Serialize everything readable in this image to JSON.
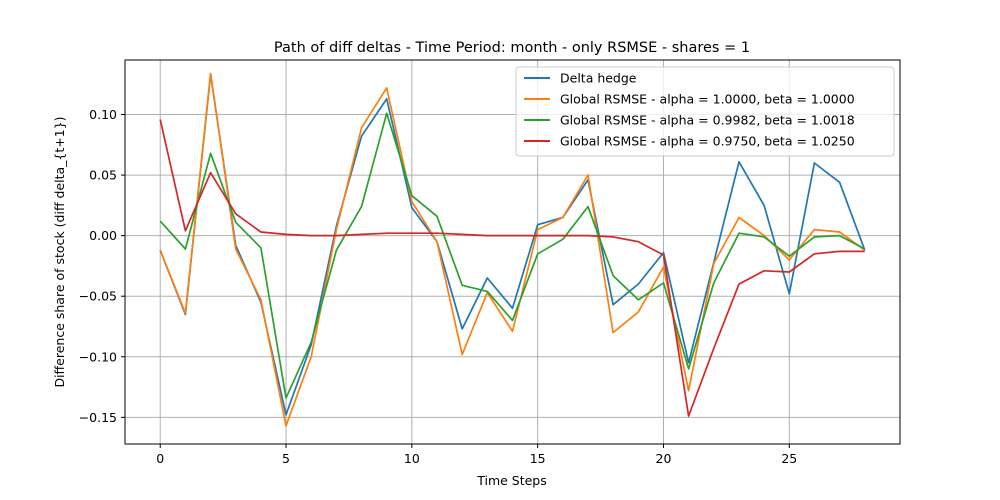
{
  "chart_data": {
    "type": "line",
    "title": "Path of diff deltas - Time Period: month - only RSMSE - shares = 1",
    "xlabel": "Time Steps",
    "ylabel": "Difference share of stock (diff delta_{t+1})",
    "xlim": [
      -1.4,
      29.4
    ],
    "ylim": [
      -0.172,
      0.145
    ],
    "x_ticks": [
      0,
      5,
      10,
      15,
      20,
      25
    ],
    "y_ticks": [
      -0.15,
      -0.1,
      -0.05,
      0.0,
      0.05,
      0.1
    ],
    "x_tick_labels": [
      "0",
      "5",
      "10",
      "15",
      "20",
      "25"
    ],
    "y_tick_labels": [
      "−0.15",
      "−0.10",
      "−0.05",
      "0.00",
      "0.05",
      "0.10"
    ],
    "grid": true,
    "legend_position": "top-right",
    "x": [
      0,
      1,
      2,
      3,
      4,
      5,
      6,
      7,
      8,
      9,
      10,
      11,
      12,
      13,
      14,
      15,
      16,
      17,
      18,
      19,
      20,
      21,
      22,
      23,
      24,
      25,
      26,
      27,
      28
    ],
    "series": [
      {
        "name": "Delta hedge",
        "color": "#1f77b4",
        "values": [
          -0.012,
          -0.065,
          0.133,
          -0.008,
          -0.055,
          -0.148,
          -0.09,
          0.008,
          0.082,
          0.113,
          0.023,
          -0.005,
          -0.077,
          -0.035,
          -0.06,
          0.009,
          0.015,
          0.046,
          -0.057,
          -0.04,
          -0.014,
          -0.105,
          -0.022,
          0.061,
          0.025,
          -0.048,
          0.06,
          0.044,
          -0.012
        ]
      },
      {
        "name": "Global RSMSE - alpha = 1.0000, beta = 1.0000",
        "color": "#ff7f0e",
        "values": [
          -0.012,
          -0.064,
          0.134,
          -0.011,
          -0.053,
          -0.157,
          -0.1,
          0.005,
          0.089,
          0.122,
          0.028,
          -0.005,
          -0.098,
          -0.047,
          -0.079,
          0.005,
          0.015,
          0.05,
          -0.08,
          -0.063,
          -0.026,
          -0.128,
          -0.023,
          0.015,
          0.0,
          -0.02,
          0.005,
          0.003,
          -0.012
        ]
      },
      {
        "name": "Global RSMSE - alpha = 0.9982, beta = 1.0018",
        "color": "#2ca02c",
        "values": [
          0.012,
          -0.011,
          0.068,
          0.011,
          -0.01,
          -0.134,
          -0.088,
          -0.012,
          0.024,
          0.101,
          0.033,
          0.016,
          -0.041,
          -0.046,
          -0.07,
          -0.015,
          -0.003,
          0.024,
          -0.033,
          -0.053,
          -0.039,
          -0.11,
          -0.039,
          0.002,
          -0.001,
          -0.017,
          -0.001,
          0.0,
          -0.011
        ]
      },
      {
        "name": "Global RSMSE - alpha = 0.9750, beta = 1.0250",
        "color": "#d62728",
        "values": [
          0.096,
          0.004,
          0.052,
          0.018,
          0.003,
          0.001,
          0.0,
          0.0,
          0.001,
          0.002,
          0.002,
          0.002,
          0.001,
          0.0,
          0.0,
          0.0,
          0.0,
          0.0,
          -0.001,
          -0.005,
          -0.016,
          -0.149,
          -0.093,
          -0.04,
          -0.029,
          -0.03,
          -0.015,
          -0.013,
          -0.013
        ]
      }
    ]
  }
}
